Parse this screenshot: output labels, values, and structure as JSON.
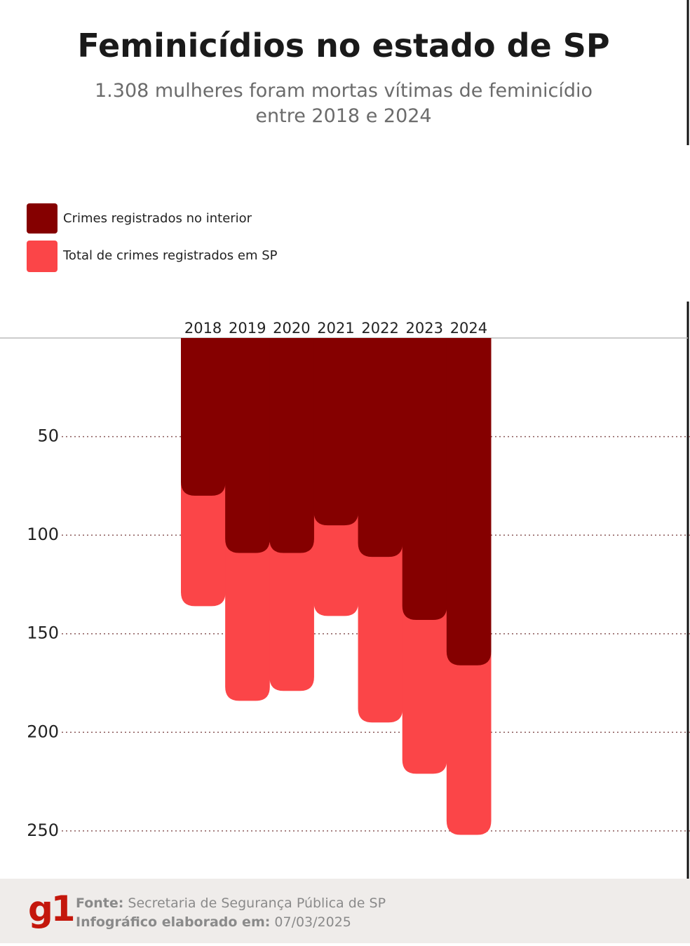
{
  "chart_data": {
    "type": "bar",
    "title": "Feminicídios no estado de SP",
    "subtitle": "1.308 mulheres foram mortas vítimas de feminicídio entre 2018 e 2024",
    "categories": [
      "2018",
      "2019",
      "2020",
      "2021",
      "2022",
      "2023",
      "2024"
    ],
    "series": [
      {
        "name": "Crimes registrados no interior",
        "color": "#850000",
        "values": [
          80,
          109,
          109,
          95,
          111,
          143,
          166
        ]
      },
      {
        "name": "Total de crimes registrados em SP",
        "color": "#fb4548",
        "values": [
          136,
          184,
          179,
          141,
          195,
          221,
          252
        ]
      }
    ],
    "ylim": [
      0,
      260
    ],
    "yticks": [
      50,
      100,
      150,
      200,
      250
    ],
    "y_reversed": true,
    "grid": true,
    "footer": {
      "source_label": "Fonte:",
      "source": "Secretaria de Segurança Pública de SP",
      "date_label": "Infográfico elaborado em:",
      "date": "07/03/2025",
      "logo": "g1"
    }
  }
}
